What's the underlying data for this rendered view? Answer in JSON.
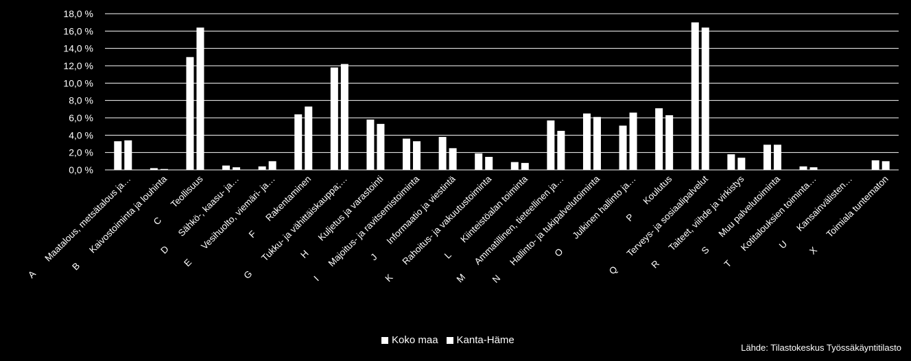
{
  "chart_data": {
    "type": "bar",
    "ylim": [
      0,
      18
    ],
    "yticks": [
      "0,0 %",
      "2,0 %",
      "4,0 %",
      "6,0 %",
      "8,0 %",
      "10,0 %",
      "12,0 %",
      "14,0 %",
      "16,0 %",
      "18,0 %"
    ],
    "grid": true,
    "legend_position": "bottom",
    "category_codes": [
      "A",
      "B",
      "C",
      "D",
      "E",
      "F",
      "G",
      "H",
      "I",
      "J",
      "K",
      "L",
      "M",
      "N",
      "O",
      "P",
      "Q",
      "R",
      "S",
      "T",
      "U",
      "X"
    ],
    "category_names": [
      "Maatalous, metsätalous ja…",
      "Kaivostoiminta ja louhinta",
      "Teollisuus",
      "Sähkö-, kaasu- ja…",
      "Vesihuolto, viemäri- ja…",
      "Rakentaminen",
      "Tukku- ja vähittäiskauppa;…",
      "Kuljetus ja varastointi",
      "Majoitus- ja ravitsemistoiminta",
      "Informaatio ja viestintä",
      "Rahoitus- ja vakuutustoiminta",
      "Kiinteistöalan toiminta",
      "Ammatillinen, tieteellinen ja…",
      "Hallinto- ja tukipalvelutoiminta",
      "Julkinen hallinto ja…",
      "Koulutus",
      "Terveys- ja sosiaalipalvelut",
      "Taiteet, viihde ja virkistys",
      "Muu palvelutoiminta",
      "Kotitalouksien toiminta…",
      "Kansainvälisten…",
      "Toimiala tuntematon"
    ],
    "series": [
      {
        "name": "Koko maa",
        "values": [
          3.3,
          0.2,
          13.0,
          0.5,
          0.4,
          6.4,
          11.8,
          5.8,
          3.6,
          3.8,
          1.9,
          0.9,
          5.7,
          6.5,
          5.1,
          7.1,
          17.0,
          1.8,
          2.9,
          0.4,
          0.0,
          1.1
        ]
      },
      {
        "name": "Kanta-Häme",
        "values": [
          3.4,
          0.1,
          16.4,
          0.3,
          1.0,
          7.3,
          12.2,
          5.3,
          3.3,
          2.5,
          1.5,
          0.8,
          4.5,
          6.1,
          6.6,
          6.3,
          16.4,
          1.4,
          2.9,
          0.3,
          0.0,
          1.0
        ]
      }
    ],
    "colors": {
      "background": "#000000",
      "bars": "#ffffff",
      "grid": "#ffffff",
      "text": "#ffffff"
    }
  },
  "source": "Lähde: Tilastokeskus Työssäkäyntitilasto"
}
